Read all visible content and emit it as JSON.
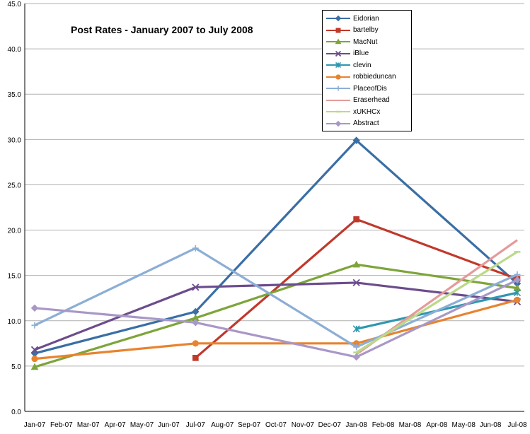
{
  "chart_data": {
    "type": "line",
    "title": "Post Rates - January 2007 to July 2008",
    "xlabel": "",
    "ylabel": "",
    "ylim": [
      0,
      45
    ],
    "yticks": [
      "0.0",
      "5.0",
      "10.0",
      "15.0",
      "20.0",
      "25.0",
      "30.0",
      "35.0",
      "40.0",
      "45.0"
    ],
    "categories": [
      "Jan-07",
      "Feb-07",
      "Mar-07",
      "Apr-07",
      "May-07",
      "Jun-07",
      "Jul-07",
      "Aug-07",
      "Sep-07",
      "Oct-07",
      "Nov-07",
      "Dec-07",
      "Jan-08",
      "Feb-08",
      "Mar-08",
      "Apr-08",
      "May-08",
      "Jun-08",
      "Jul-08"
    ],
    "grid": "horizontal",
    "legend_position": "top-right",
    "series": [
      {
        "name": "Eidorian",
        "color": "#3a6ea5",
        "marker": "diamond",
        "values": [
          6.4,
          null,
          null,
          null,
          null,
          null,
          11.0,
          null,
          null,
          null,
          null,
          null,
          29.9,
          null,
          null,
          null,
          null,
          null,
          14.1
        ]
      },
      {
        "name": "bartelby",
        "color": "#c0392b",
        "marker": "square",
        "values": [
          null,
          null,
          null,
          null,
          null,
          null,
          5.9,
          null,
          null,
          null,
          null,
          null,
          21.2,
          null,
          null,
          null,
          null,
          null,
          14.6
        ]
      },
      {
        "name": "MacNut",
        "color": "#7da53a",
        "marker": "triangle",
        "values": [
          4.9,
          null,
          null,
          null,
          null,
          null,
          10.3,
          null,
          null,
          null,
          null,
          null,
          16.2,
          null,
          null,
          null,
          null,
          null,
          13.6
        ]
      },
      {
        "name": "iBlue",
        "color": "#6b4c8c",
        "marker": "x",
        "values": [
          6.8,
          null,
          null,
          null,
          null,
          null,
          13.7,
          null,
          null,
          null,
          null,
          null,
          14.2,
          null,
          null,
          null,
          null,
          null,
          12.1
        ]
      },
      {
        "name": "clevin",
        "color": "#2e97b0",
        "marker": "star",
        "values": [
          null,
          null,
          null,
          null,
          null,
          null,
          null,
          null,
          null,
          null,
          null,
          null,
          9.1,
          null,
          null,
          null,
          null,
          null,
          13.1
        ]
      },
      {
        "name": "robbieduncan",
        "color": "#e8832e",
        "marker": "circle",
        "values": [
          5.8,
          null,
          null,
          null,
          null,
          null,
          7.5,
          null,
          null,
          null,
          null,
          null,
          7.5,
          null,
          null,
          null,
          null,
          null,
          12.3
        ]
      },
      {
        "name": "PlaceofDis",
        "color": "#8caed6",
        "marker": "plus",
        "values": [
          9.5,
          null,
          null,
          null,
          null,
          null,
          18.0,
          null,
          null,
          null,
          null,
          null,
          7.1,
          null,
          null,
          null,
          null,
          null,
          15.1
        ]
      },
      {
        "name": "Eraserhead",
        "color": "#e59a9a",
        "marker": "none",
        "values": [
          null,
          null,
          null,
          null,
          null,
          null,
          null,
          null,
          null,
          null,
          null,
          null,
          6.3,
          null,
          null,
          null,
          null,
          null,
          18.9
        ]
      },
      {
        "name": "xUKHCx",
        "color": "#bcd98a",
        "marker": "dash",
        "values": [
          null,
          null,
          null,
          null,
          null,
          null,
          null,
          null,
          null,
          null,
          null,
          null,
          6.5,
          null,
          null,
          null,
          null,
          null,
          17.6
        ]
      },
      {
        "name": "Abstract",
        "color": "#a897c7",
        "marker": "diamond",
        "values": [
          11.4,
          null,
          null,
          null,
          null,
          null,
          9.8,
          null,
          null,
          null,
          null,
          null,
          6.0,
          null,
          null,
          null,
          null,
          null,
          14.5
        ]
      }
    ]
  }
}
